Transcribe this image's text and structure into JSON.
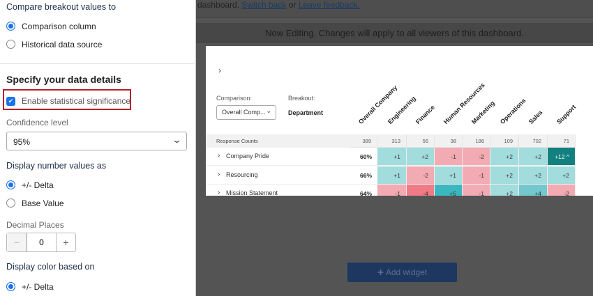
{
  "panel": {
    "compare_heading": "Compare breakout values to",
    "compare_options": [
      "Comparison column",
      "Historical data source"
    ],
    "compare_selected": 0,
    "section_title": "Specify your data details",
    "stat_sig_label": "Enable statistical significance",
    "stat_sig_checked": true,
    "confidence_label": "Confidence level",
    "confidence_value": "95%",
    "display_number_heading": "Display number values as",
    "number_options": [
      "+/- Delta",
      "Base Value"
    ],
    "number_selected": 0,
    "decimal_label": "Decimal Places",
    "decimal_value": "0",
    "minus": "−",
    "plus": "+",
    "display_color_heading": "Display color based on",
    "color_options": [
      "+/- Delta"
    ],
    "color_selected": 0
  },
  "topbar": {
    "prefix": "dashboard. ",
    "switch_back": "Switch back",
    "or": " or ",
    "leave_feedback": "Leave feedback."
  },
  "banner": "Now Editing. Changes will apply to all viewers of this dashboard.",
  "widget": {
    "expand": "›",
    "comparison_label": "Comparison:",
    "comparison_value": "Overall Comp...",
    "breakout_label": "Breakout:",
    "breakout_value": "Department",
    "columns": [
      "Overall Company",
      "Engineering",
      "Finance",
      "Human Resources",
      "Marketing",
      "Operations",
      "Sales",
      "Support"
    ],
    "response_counts_label": "Response Counts",
    "response_counts": [
      "389",
      "313",
      "56",
      "38",
      "186",
      "109",
      "702",
      "71"
    ],
    "rows": [
      {
        "label": "Company Pride",
        "overall": "60%",
        "values": [
          "+1",
          "+2",
          "-1",
          "-2",
          "+2",
          "+2",
          "+12 ^"
        ]
      },
      {
        "label": "Resourcing",
        "overall": "66%",
        "values": [
          "+1",
          "-2",
          "+1",
          "-1",
          "+2",
          "+2",
          "+2"
        ]
      },
      {
        "label": "Mission Statement",
        "overall": "64%",
        "values": [
          "-1",
          "-4",
          "+5",
          "-1",
          "+2",
          "+4",
          "-2"
        ]
      }
    ],
    "colors": {
      "pos1": "#a2dcdd",
      "pos2": "#72c8cc",
      "pos3": "#3bb8bf",
      "pos4": "#12807f",
      "neg1": "#f3abb3",
      "neg2": "#f07a86"
    }
  },
  "add_widget": "Add widget"
}
